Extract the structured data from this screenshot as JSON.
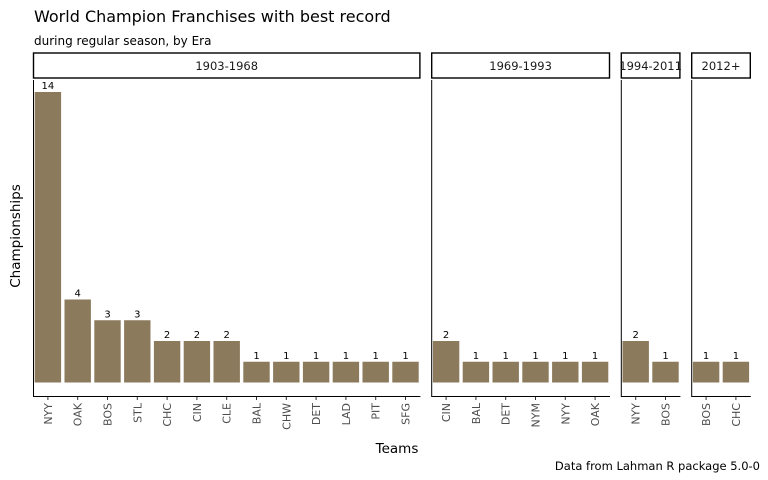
{
  "chart_data": {
    "type": "bar",
    "title": "World Champion Franchises with best record",
    "subtitle": "during regular season, by Era",
    "xlabel": "Teams",
    "ylabel": "Championships",
    "caption": "Data from Lahman R package 5.0-0",
    "ylim": [
      0,
      14.7
    ],
    "grid": false,
    "bar_color": "#8b7a5c",
    "panels": [
      {
        "label": "1903-1968",
        "categories": [
          "NYY",
          "OAK",
          "BOS",
          "STL",
          "CHC",
          "CIN",
          "CLE",
          "BAL",
          "CHW",
          "DET",
          "LAD",
          "PIT",
          "SFG"
        ],
        "values": [
          14,
          4,
          3,
          3,
          2,
          2,
          2,
          1,
          1,
          1,
          1,
          1,
          1
        ]
      },
      {
        "label": "1969-1993",
        "categories": [
          "CIN",
          "BAL",
          "DET",
          "NYM",
          "NYY",
          "OAK"
        ],
        "values": [
          2,
          1,
          1,
          1,
          1,
          1
        ]
      },
      {
        "label": "1994-2011",
        "categories": [
          "NYY",
          "BOS"
        ],
        "values": [
          2,
          1
        ]
      },
      {
        "label": "2012+",
        "categories": [
          "BOS",
          "CHC"
        ],
        "values": [
          1,
          1
        ]
      }
    ]
  }
}
